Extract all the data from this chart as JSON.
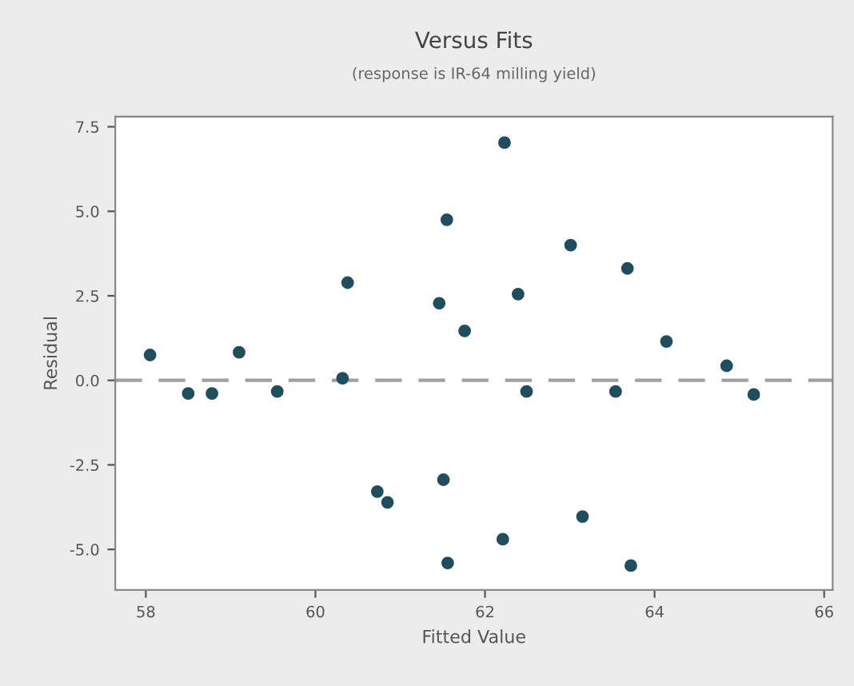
{
  "chart_data": {
    "type": "scatter",
    "title": "Versus Fits",
    "subtitle": "(response is IR-64 milling yield)",
    "xlabel": "Fitted Value",
    "ylabel": "Residual",
    "xlim": [
      57.64,
      66.1
    ],
    "xticks": [
      58,
      60,
      62,
      64,
      66
    ],
    "ylim": [
      -6.2,
      7.8
    ],
    "yticks": [
      {
        "value": -5,
        "label": "-5.0"
      },
      {
        "value": -2.5,
        "label": "-2.5"
      },
      {
        "value": 0,
        "label": "0.0"
      },
      {
        "value": 2.5,
        "label": "2.5"
      },
      {
        "value": 5,
        "label": "5.0"
      },
      {
        "value": 7.5,
        "label": "7.5"
      }
    ],
    "grid": false,
    "legend": false,
    "marker": "circle",
    "ref_lines": [
      {
        "axis": "y",
        "value": 0,
        "color": "#a0a0a0",
        "line_style": "dashed"
      }
    ],
    "series": [
      {
        "color": "#1f4e5f",
        "x": [
          58.05,
          58.5,
          58.78,
          59.1,
          59.55,
          60.32,
          60.38,
          61.55,
          61.46,
          61.76,
          62.39,
          62.49,
          63.01,
          63.54,
          63.68,
          64.14,
          64.85,
          65.17,
          60.73,
          60.85,
          61.51,
          61.56,
          62.21,
          63.15,
          63.72,
          62.23
        ],
        "values": [
          0.75,
          -0.39,
          -0.39,
          0.83,
          -0.33,
          0.06,
          2.89,
          4.75,
          2.28,
          1.46,
          2.55,
          -0.33,
          4.0,
          -0.33,
          3.31,
          1.15,
          0.43,
          -0.42,
          -3.29,
          -3.61,
          -2.94,
          -5.4,
          -4.7,
          -4.03,
          -5.48,
          7.03
        ]
      }
    ]
  }
}
